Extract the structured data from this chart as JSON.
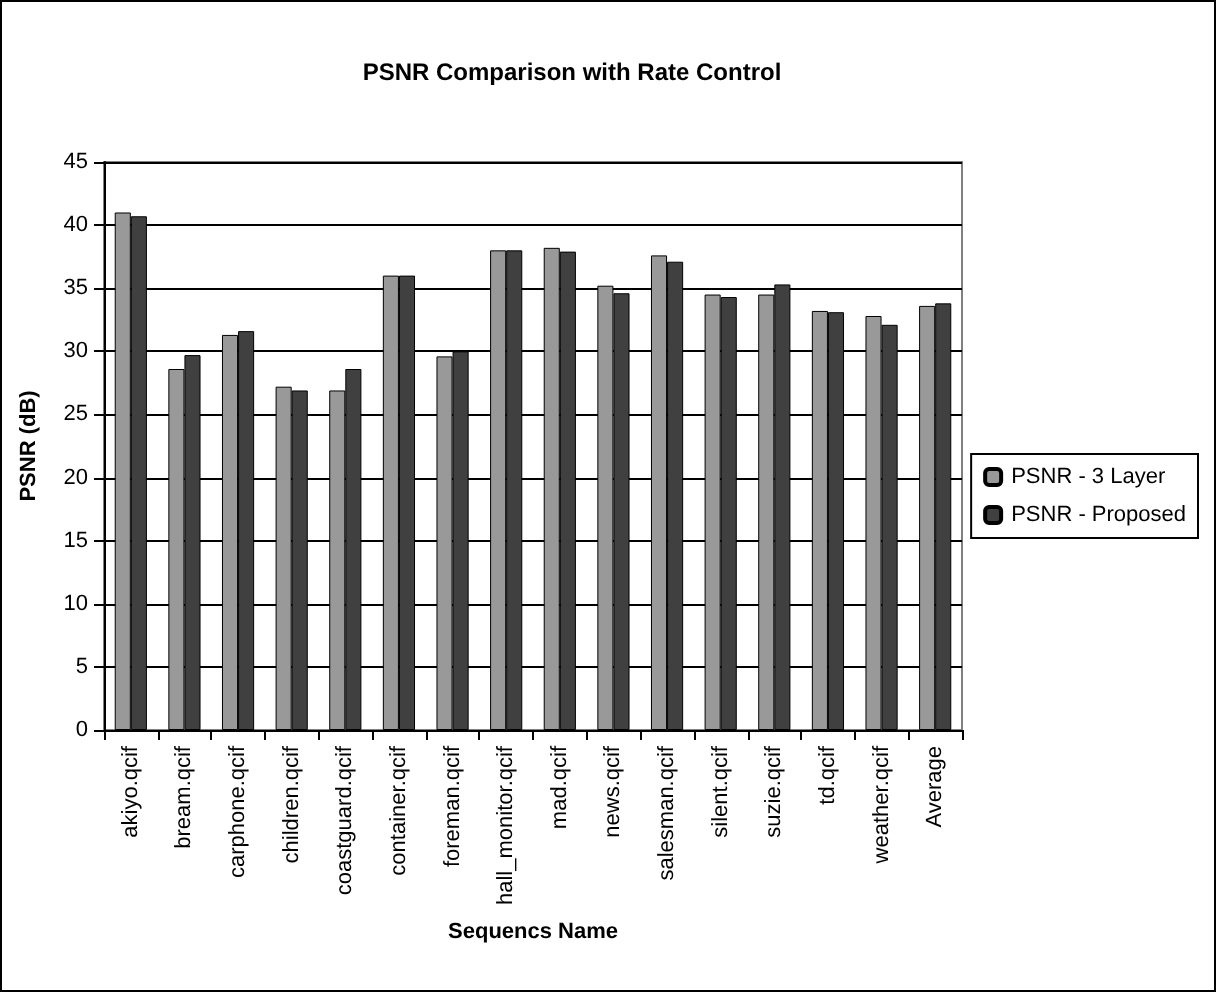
{
  "chart_data": {
    "type": "bar",
    "title": "PSNR Comparison with Rate Control",
    "xlabel": "Sequencs Name",
    "ylabel": "PSNR (dB)",
    "categories": [
      "akiyo.qcif",
      "bream.qcif",
      "carphone.qcif",
      "children.qcif",
      "coastguard.qcif",
      "container.qcif",
      "foreman.qcif",
      "hall_monitor.qcif",
      "mad.qcif",
      "news.qcif",
      "salesman.qcif",
      "silent.qcif",
      "suzie.qcif",
      "td.qcif",
      "weather.qcif",
      "Average"
    ],
    "series": [
      {
        "name": "PSNR - 3 Layer",
        "color": "#999999",
        "values": [
          41.0,
          28.6,
          31.3,
          27.2,
          26.9,
          36.0,
          29.6,
          38.0,
          38.2,
          35.2,
          37.6,
          34.5,
          34.5,
          33.2,
          32.8,
          33.6
        ]
      },
      {
        "name": "PSNR - Proposed",
        "color": "#404040",
        "values": [
          40.7,
          29.7,
          31.6,
          26.9,
          28.6,
          36.0,
          30.0,
          38.0,
          37.9,
          34.6,
          37.1,
          34.3,
          35.3,
          33.1,
          32.1,
          33.8
        ]
      }
    ],
    "ylim": [
      0,
      45
    ],
    "yticks": [
      0,
      5,
      10,
      15,
      20,
      25,
      30,
      35,
      40,
      45
    ],
    "grid": "y",
    "legend": "right"
  }
}
